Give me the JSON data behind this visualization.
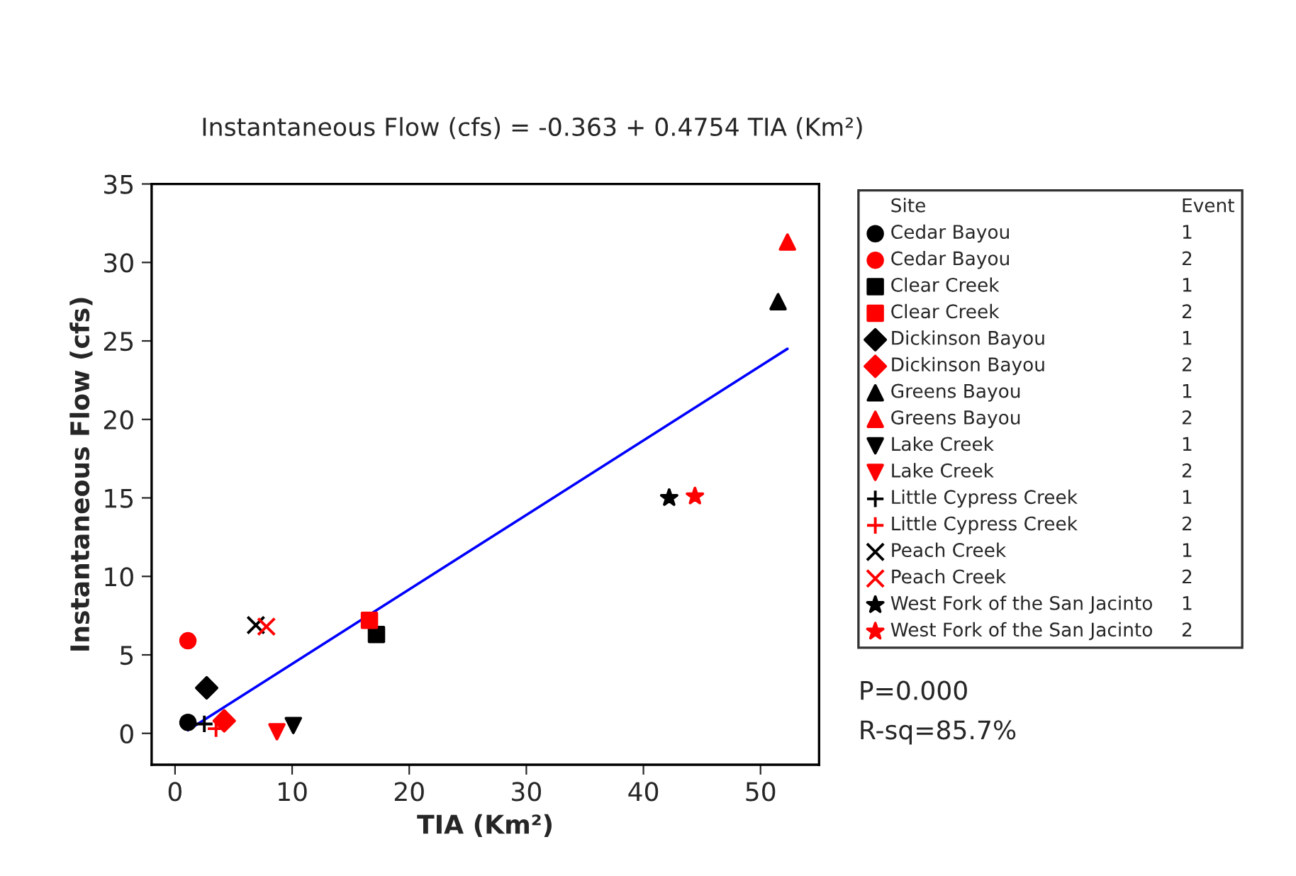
{
  "chart_data": {
    "type": "scatter",
    "title": "Instantaneous Flow (cfs) = -0.363 + 0.4754 TIA (Km²)",
    "xlabel": "TIA (Km²)",
    "ylabel": "Instantaneous Flow (cfs)",
    "legend_title": "Site",
    "legend": "right",
    "grid": false,
    "xlim": [
      -2,
      55
    ],
    "ylim": [
      -2,
      35
    ],
    "xticks": [
      0,
      10,
      20,
      30,
      40,
      50
    ],
    "yticks": [
      0,
      5,
      10,
      15,
      20,
      25,
      30,
      35
    ],
    "series": [
      {
        "name": "Cedar Bayou",
        "color": "#000000",
        "marker": "circle",
        "x": [
          1.1
        ],
        "values": [
          0.7
        ]
      },
      {
        "name": "Cedar Bayou",
        "color": "#ff0000",
        "marker": "circle",
        "x": [
          1.1
        ],
        "values": [
          5.9
        ]
      },
      {
        "name": "Clear Creek",
        "color": "#000000",
        "marker": "square",
        "x": [
          17.2
        ],
        "values": [
          6.3
        ]
      },
      {
        "name": "Clear Creek",
        "color": "#ff0000",
        "marker": "square",
        "x": [
          16.6
        ],
        "values": [
          7.2
        ]
      },
      {
        "name": "Dickinson Bayou",
        "color": "#000000",
        "marker": "diamond",
        "x": [
          2.7
        ],
        "values": [
          2.9
        ]
      },
      {
        "name": "Dickinson Bayou",
        "color": "#ff0000",
        "marker": "diamond",
        "x": [
          4.2
        ],
        "values": [
          0.8
        ]
      },
      {
        "name": "Greens Bayou",
        "color": "#000000",
        "marker": "triangle",
        "x": [
          51.5
        ],
        "values": [
          27.5
        ]
      },
      {
        "name": "Greens Bayou",
        "color": "#ff0000",
        "marker": "triangle",
        "x": [
          52.3
        ],
        "values": [
          31.3
        ]
      },
      {
        "name": "Lake Creek",
        "color": "#000000",
        "marker": "triangle_down",
        "x": [
          10.1
        ],
        "values": [
          0.5
        ]
      },
      {
        "name": "Lake Creek",
        "color": "#ff0000",
        "marker": "triangle_down",
        "x": [
          8.7
        ],
        "values": [
          0.1
        ]
      },
      {
        "name": "Little Cypress Creek",
        "color": "#000000",
        "marker": "plus",
        "x": [
          2.5
        ],
        "values": [
          0.6
        ]
      },
      {
        "name": "Little Cypress Creek",
        "color": "#ff0000",
        "marker": "plus",
        "x": [
          3.5
        ],
        "values": [
          0.3
        ]
      },
      {
        "name": "Peach Creek",
        "color": "#000000",
        "marker": "cross",
        "x": [
          6.9
        ],
        "values": [
          6.9
        ]
      },
      {
        "name": "Peach Creek",
        "color": "#ff0000",
        "marker": "cross",
        "x": [
          7.8
        ],
        "values": [
          6.8
        ]
      },
      {
        "name": "West Fork of the San Jacinto",
        "color": "#000000",
        "marker": "star",
        "x": [
          42.2
        ],
        "values": [
          15.0
        ]
      },
      {
        "name": "West Fork of the San Jacinto",
        "color": "#ff0000",
        "marker": "star",
        "x": [
          44.4
        ],
        "values": [
          15.1
        ]
      },
      {
        "type": "line",
        "color": "#0000ff",
        "marker": "none",
        "line_style": "solid",
        "x": [
          1.1,
          52.3
        ],
        "values": [
          0.2,
          24.5
        ]
      }
    ],
    "annotations": [
      "Event",
      "1",
      "2",
      "1",
      "2",
      "1",
      "2",
      "1",
      "2",
      "1",
      "2",
      "1",
      "2",
      "1",
      "2",
      "1",
      "2",
      "P=0.000",
      "R-sq=85.7%"
    ]
  }
}
